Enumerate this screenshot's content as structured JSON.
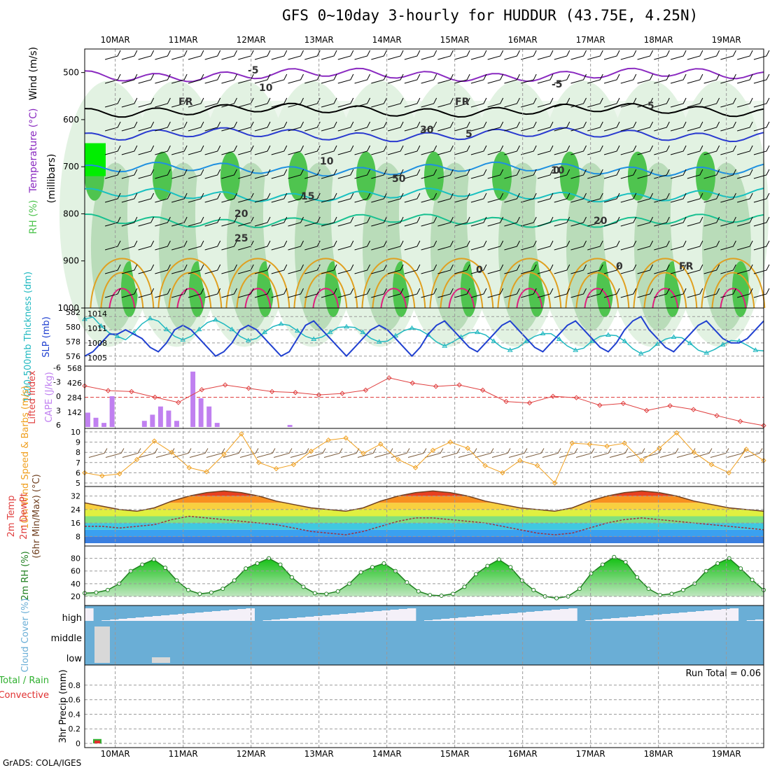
{
  "title": "GFS 0~10day 3-hourly for HUDDUR (43.75E, 4.25N)",
  "footer": "GrADS: COLA/IGES",
  "colors": {
    "rh_dark": "#4fc44f",
    "rh_mid": "#b9dcb9",
    "rh_light": "#e2f2e2",
    "temp_purple": "#8a2ac0",
    "temp_blue": "#2a3ad0",
    "temp_lightblue": "#1e90e0",
    "temp_cyan": "#18c0c0",
    "temp_green": "#18c090",
    "temp_orange": "#e0a020",
    "temp_magenta": "#e0207f",
    "slp": "#2040d0",
    "thickness": "#20b8c0",
    "lifted": "#e04040",
    "cape": "#c080f0",
    "wind_speed": "#f0a020",
    "rh_line": "#208020",
    "cloud": "#6aaed6",
    "cloud_clear": "#f4f0f8",
    "cloud_low_gray": "#d8d8d8"
  },
  "days": [
    "10MAR",
    "11MAR",
    "12MAR",
    "13MAR",
    "14MAR",
    "15MAR",
    "16MAR",
    "17MAR",
    "18MAR",
    "19MAR"
  ],
  "chart_data": [
    {
      "type": "heatmap",
      "panel": "upper air",
      "ylabel": [
        "RH (%)",
        "Temperature (°C)",
        "Wind (m/s)"
      ],
      "ylabel2": "(millibars)",
      "ylim": [
        1000,
        450
      ],
      "yticks": [
        500,
        600,
        700,
        800,
        900,
        1000
      ],
      "contour_labels": [
        "-5",
        "FR",
        "5",
        "10",
        "15",
        "20",
        "25",
        "-5",
        "FR",
        "5",
        "10",
        "20",
        "FR",
        "0",
        "0",
        "0",
        "30",
        "50",
        "10"
      ]
    },
    {
      "type": "line",
      "panel": "SLP / thickness",
      "ylabel_left": "1000-500mb Thickness (dm)",
      "ylabel_right": "SLP (mb)",
      "left_ticks": [
        "582",
        "580",
        "578",
        "576"
      ],
      "right_ticks": [
        "1014",
        "1011",
        "1008",
        "1005"
      ],
      "series": [
        {
          "name": "SLP (mb)",
          "values": [
            1005,
            1006,
            1008,
            1010,
            1010,
            1011,
            1010,
            1009,
            1007,
            1006,
            1008,
            1011,
            1012,
            1011,
            1009,
            1007,
            1005,
            1006,
            1008,
            1011,
            1012,
            1011,
            1009,
            1007,
            1005,
            1006,
            1009,
            1012,
            1013,
            1011,
            1009,
            1007,
            1005,
            1007,
            1009,
            1011,
            1012,
            1011,
            1009,
            1007,
            1005,
            1007,
            1010,
            1012,
            1013,
            1011,
            1009,
            1007,
            1006,
            1008,
            1010,
            1012,
            1013,
            1011,
            1009,
            1007,
            1006,
            1008,
            1010,
            1012,
            1013,
            1011,
            1009,
            1007,
            1006,
            1008,
            1011,
            1013,
            1014,
            1011,
            1009,
            1007,
            1006,
            1008,
            1010,
            1012,
            1013,
            1011,
            1009,
            1008,
            1008,
            1009,
            1011,
            1013
          ]
        },
        {
          "name": "1000-500mb Thickness (dm)",
          "values": [
            581.5,
            581.8,
            580.5,
            579.5,
            579,
            578.5,
            579.5,
            580.8,
            581.6,
            581.2,
            580,
            579,
            578.5,
            579,
            580,
            581,
            581.4,
            580.8,
            580,
            579,
            578.4,
            578.7,
            579.6,
            580.4,
            580.8,
            580.6,
            579.8,
            579,
            578.6,
            578.9,
            579.6,
            580.3,
            580.4,
            580.3,
            579.6,
            578.7,
            578.2,
            578.3,
            579.1,
            579.8,
            580.2,
            579.9,
            579.2,
            578.2,
            577.6,
            578.2,
            578.9,
            579.5,
            579.6,
            579.2,
            578.3,
            577.4,
            577,
            577.4,
            578.3,
            579,
            579.4,
            579.4,
            578.6,
            577.6,
            577,
            577.3,
            578.3,
            579,
            579.2,
            579.1,
            578.3,
            577.2,
            576.5,
            576.9,
            577.9,
            578.6,
            578.9,
            578.8,
            578,
            577,
            576.6,
            577.1,
            577.8,
            578.4,
            578.3,
            577.7,
            577,
            576.9
          ]
        }
      ]
    },
    {
      "type": "bar",
      "panel": "Lifted Index / CAPE",
      "ylabel_left": "Lifted Index",
      "ylabel_right": "CAPE (J/kg)",
      "left_ticks": [
        "-6",
        "-3",
        "0",
        "3",
        "6"
      ],
      "right_ticks": [
        "568",
        "426",
        "284",
        "142"
      ],
      "series": [
        {
          "name": "CAPE (J/kg)",
          "values": [
            140,
            90,
            40,
            300,
            0,
            0,
            0,
            60,
            120,
            200,
            160,
            60,
            0,
            540,
            280,
            200,
            40,
            0,
            0,
            0,
            0,
            0,
            0,
            0,
            0,
            20,
            0,
            0,
            0,
            0,
            0,
            0,
            0,
            0,
            0,
            0,
            0,
            0,
            0,
            0,
            0,
            0,
            0,
            0,
            0,
            0,
            0,
            0,
            0,
            0,
            0,
            0,
            0,
            0,
            0,
            0,
            0,
            0,
            0,
            0,
            0,
            0,
            0,
            0,
            0,
            0,
            0,
            0,
            0,
            0,
            0,
            0,
            0,
            0,
            0,
            0,
            0,
            0,
            0,
            0,
            0,
            0,
            0,
            0
          ]
        },
        {
          "name": "Lifted Index",
          "values": [
            -2.4,
            -1.4,
            -1.2,
            0.0,
            1.1,
            -1.6,
            -2.6,
            -1.9,
            -1.2,
            -1.0,
            -0.5,
            -0.8,
            -1.5,
            -4.1,
            -3.0,
            -2.3,
            -2.6,
            -1.5,
            0.9,
            1.2,
            -0.2,
            0.1,
            1.7,
            1.3,
            2.8,
            1.8,
            2.6,
            3.9,
            5.1,
            6.0
          ]
        }
      ]
    },
    {
      "type": "line",
      "panel": "10m Wind",
      "ylabel": "10m Wind Speed & Barbs (m/s)",
      "ylim": [
        5,
        10
      ],
      "yticks": [
        "10",
        "9",
        "8",
        "7",
        "6",
        "5"
      ],
      "series": [
        {
          "name": "Speed",
          "values": [
            6,
            5.7,
            5.9,
            7.3,
            9.1,
            8,
            6.5,
            6.1,
            7.8,
            9.8,
            7,
            6.4,
            6.8,
            8.1,
            9.2,
            9.4,
            7.9,
            8.8,
            7.3,
            6.5,
            8.2,
            9,
            8.4,
            6.7,
            6,
            7.2,
            6.7,
            5,
            8.9,
            8.8,
            8.6,
            8.9,
            7.2,
            8.4,
            9.9,
            8,
            6.8,
            6,
            8.3,
            7.2
          ]
        }
      ]
    },
    {
      "type": "line",
      "panel": "2m Temp",
      "ylabel": [
        "2m Temp",
        "2m DewPt",
        "(6hr Min/Max) (°C)"
      ],
      "ylim": [
        4,
        36
      ],
      "yticks": [
        "32",
        "24",
        "16",
        "8"
      ],
      "series": [
        {
          "name": "2m Temp",
          "values": [
            28,
            26,
            24,
            23,
            25,
            29,
            32,
            34,
            35,
            34,
            32,
            29,
            27,
            25,
            24,
            23,
            25,
            29,
            32,
            34,
            35,
            34,
            32,
            29,
            27,
            25,
            24,
            23,
            25,
            29,
            32,
            34,
            35,
            34,
            32,
            29,
            27,
            25,
            24,
            23
          ]
        },
        {
          "name": "2m DewPt",
          "values": [
            14,
            14,
            13,
            14,
            15,
            18,
            20,
            19,
            18,
            17,
            16,
            15,
            13,
            11,
            10,
            9,
            11,
            14,
            17,
            19,
            19,
            18,
            17,
            16,
            14,
            12,
            10,
            9,
            10,
            13,
            16,
            18,
            19,
            18,
            17,
            16,
            15,
            14,
            13,
            12
          ]
        }
      ]
    },
    {
      "type": "area",
      "panel": "2m RH",
      "ylabel": "2m RH (%)",
      "ylim": [
        10,
        95
      ],
      "yticks": [
        "80",
        "60",
        "40",
        "20"
      ],
      "series": [
        {
          "name": "2m RH",
          "values": [
            25,
            26,
            30,
            40,
            60,
            70,
            78,
            65,
            45,
            30,
            24,
            26,
            32,
            45,
            64,
            72,
            80,
            70,
            50,
            35,
            25,
            24,
            28,
            40,
            58,
            66,
            72,
            60,
            42,
            28,
            22,
            21,
            24,
            35,
            55,
            68,
            78,
            66,
            45,
            30,
            20,
            17,
            20,
            32,
            56,
            70,
            82,
            74,
            50,
            32,
            22,
            24,
            30,
            40,
            60,
            72,
            80,
            64,
            46,
            30
          ]
        }
      ]
    },
    {
      "type": "area",
      "panel": "Cloud Cover",
      "ylabel": "Cloud Cover (%)",
      "levels": [
        "high",
        "middle",
        "low"
      ]
    },
    {
      "type": "bar",
      "panel": "3hr Precip",
      "ylabel": "3hr Precip (mm)",
      "ylabel_total": "Total / Rain",
      "ylabel_convective": "Convective",
      "ylim": [
        0,
        1
      ],
      "yticks": [
        "0.8",
        "0.6",
        "0.4",
        "0.2",
        "0"
      ],
      "annotation": "Run Total = 0.06",
      "series": [
        {
          "name": "Total",
          "values": [
            0.06
          ]
        },
        {
          "name": "Convective",
          "values": [
            0.04
          ]
        }
      ]
    }
  ]
}
